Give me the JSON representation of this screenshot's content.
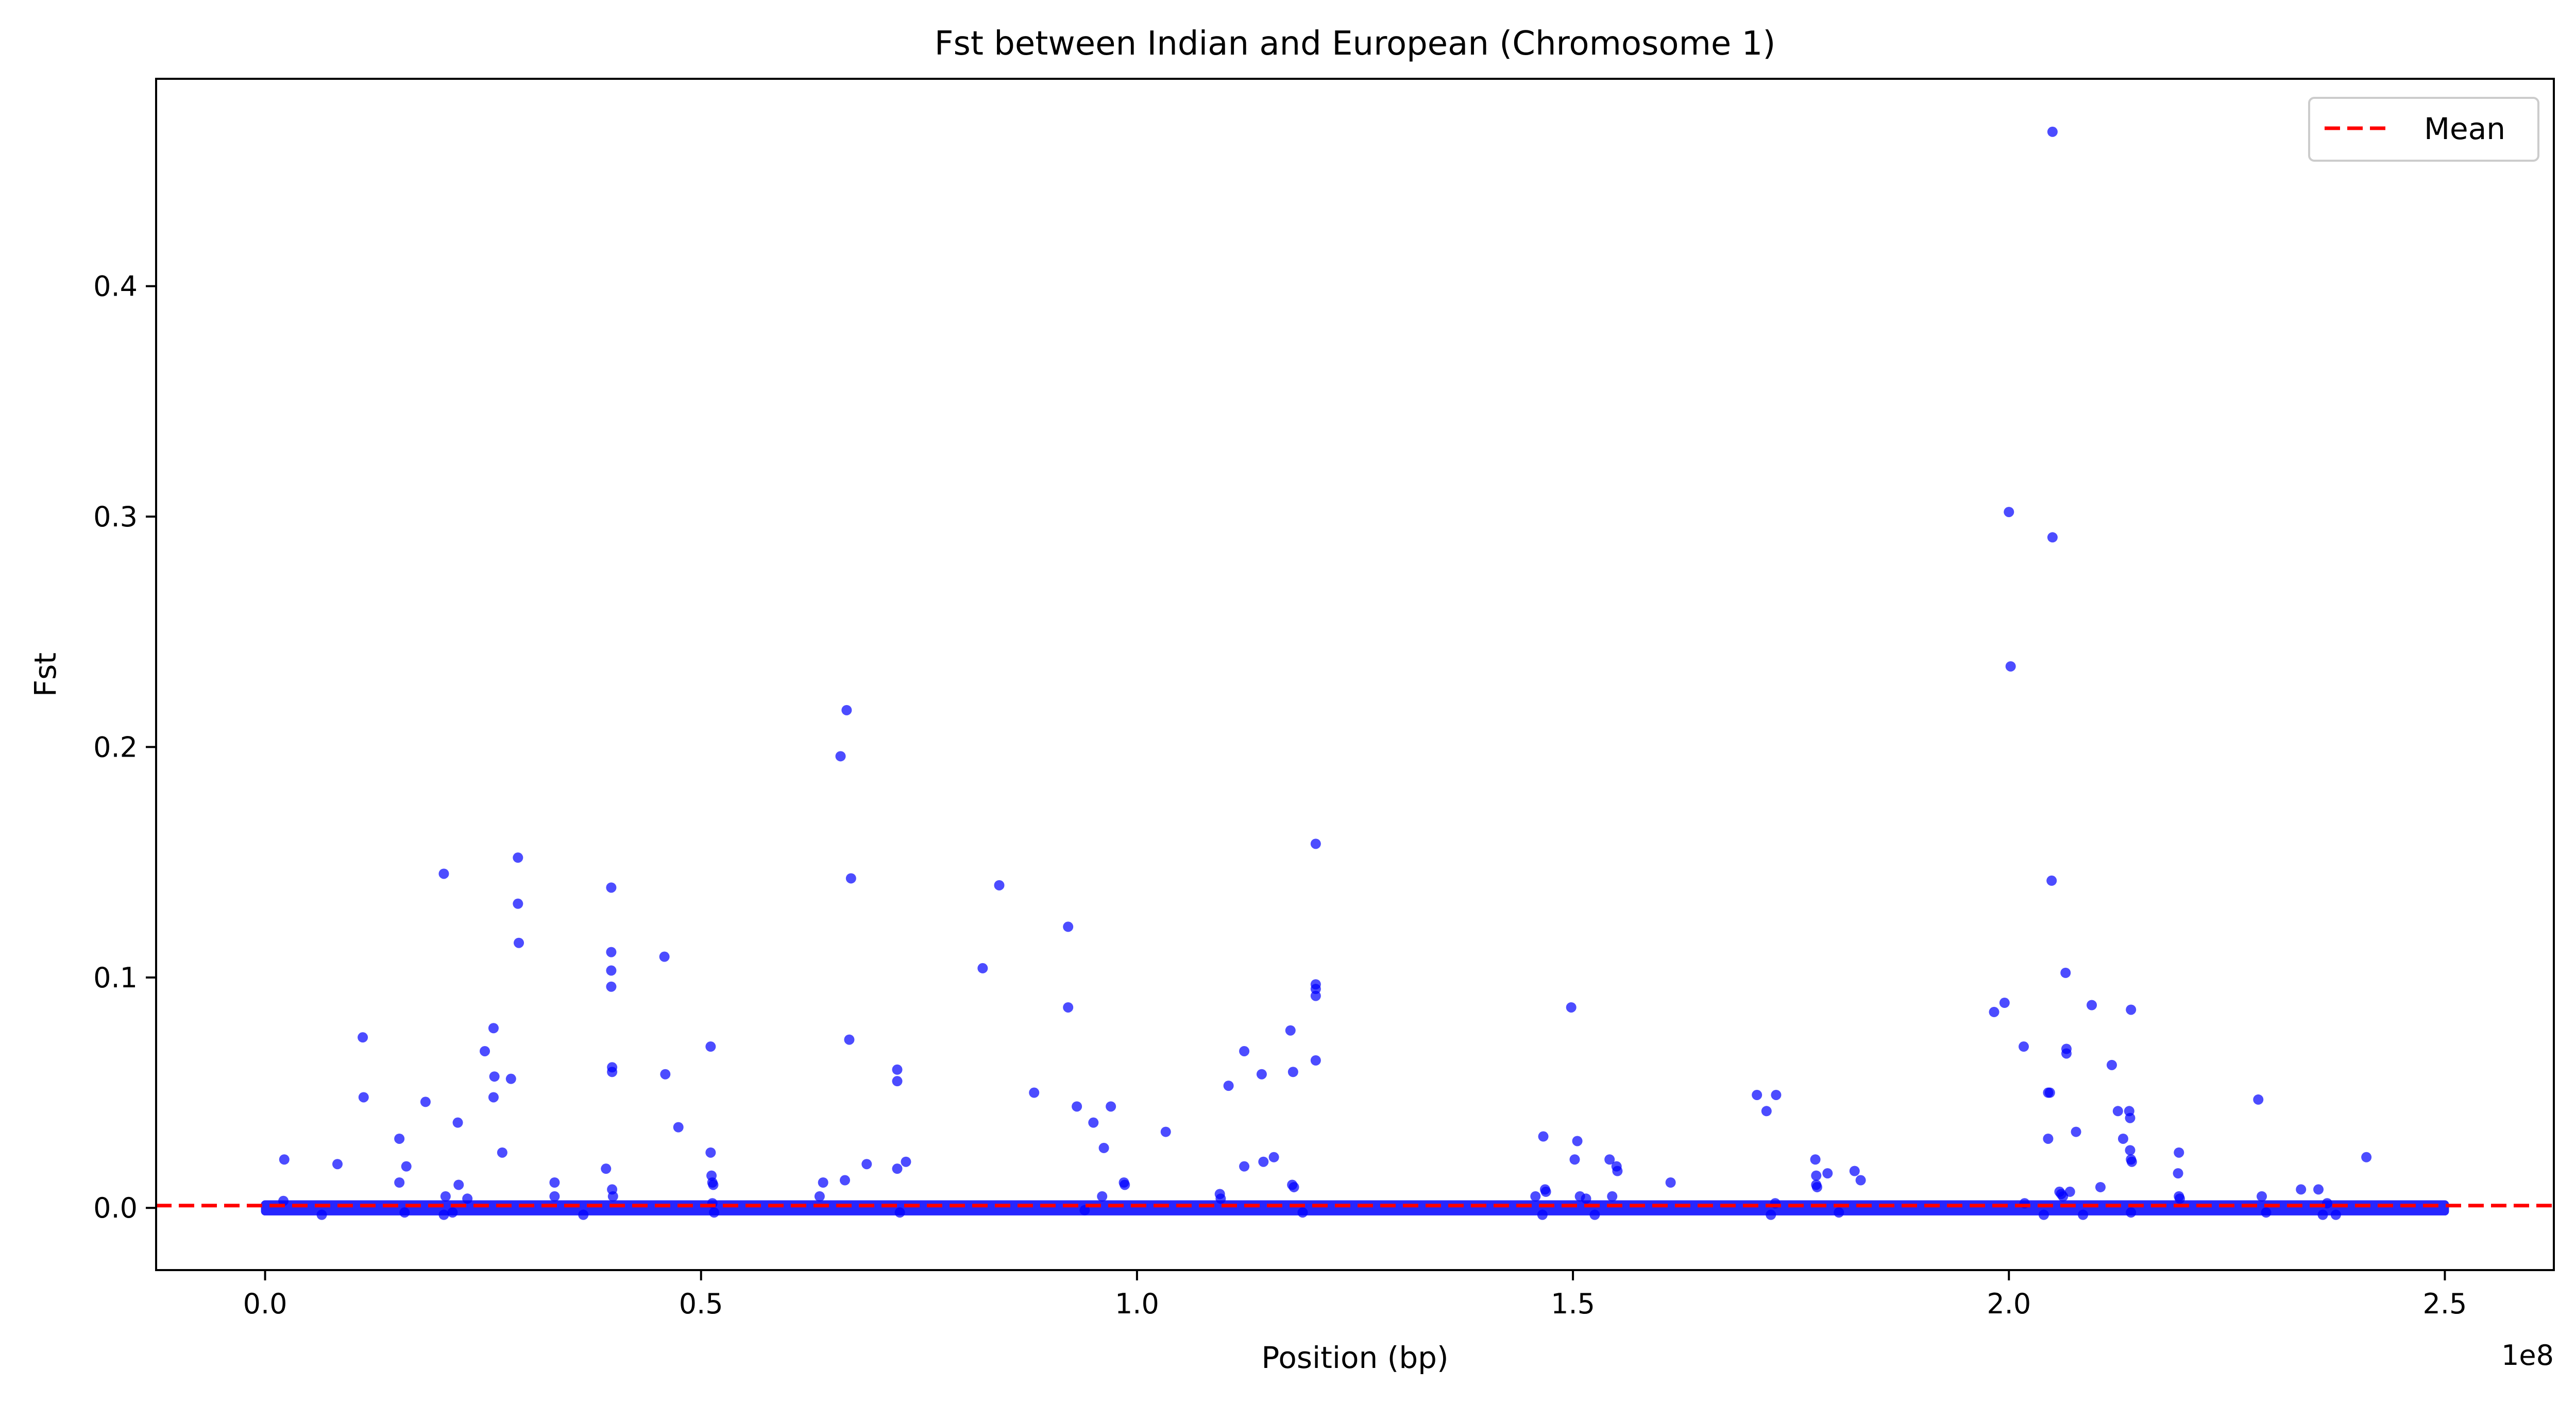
{
  "chart_data": {
    "type": "scatter",
    "title": "Fst between Indian and European (Chromosome 1)",
    "xlabel": "Position (bp)",
    "ylabel": "Fst",
    "x_offset_label": "1e8",
    "xlim": [
      -0.125,
      2.625
    ],
    "ylim": [
      -0.027,
      0.49
    ],
    "x_ticks": [
      {
        "value": 0.0,
        "label": "0.0"
      },
      {
        "value": 0.5,
        "label": "0.5"
      },
      {
        "value": 1.0,
        "label": "1.0"
      },
      {
        "value": 1.5,
        "label": "1.5"
      },
      {
        "value": 2.0,
        "label": "2.0"
      },
      {
        "value": 2.5,
        "label": "2.5"
      }
    ],
    "y_ticks": [
      {
        "value": 0.0,
        "label": "0.0"
      },
      {
        "value": 0.1,
        "label": "0.1"
      },
      {
        "value": 0.2,
        "label": "0.2"
      },
      {
        "value": 0.3,
        "label": "0.3"
      },
      {
        "value": 0.4,
        "label": "0.4"
      }
    ],
    "grid": false,
    "legend": {
      "position": "top-right",
      "entries": [
        {
          "label": "Mean",
          "style": "dashed-line",
          "color": "#ff0000"
        }
      ]
    },
    "mean_value": 0.001,
    "point_color": "#0000ff",
    "points": [
      {
        "x": 0.022,
        "y": 0.021
      },
      {
        "x": 0.021,
        "y": 0.003
      },
      {
        "x": 0.083,
        "y": 0.019
      },
      {
        "x": 0.112,
        "y": 0.074
      },
      {
        "x": 0.113,
        "y": 0.048
      },
      {
        "x": 0.154,
        "y": 0.03
      },
      {
        "x": 0.154,
        "y": 0.011
      },
      {
        "x": 0.162,
        "y": 0.018
      },
      {
        "x": 0.184,
        "y": 0.046
      },
      {
        "x": 0.205,
        "y": 0.145
      },
      {
        "x": 0.207,
        "y": 0.005
      },
      {
        "x": 0.221,
        "y": 0.037
      },
      {
        "x": 0.222,
        "y": 0.01
      },
      {
        "x": 0.232,
        "y": 0.004
      },
      {
        "x": 0.252,
        "y": 0.068
      },
      {
        "x": 0.262,
        "y": 0.078
      },
      {
        "x": 0.263,
        "y": 0.057
      },
      {
        "x": 0.262,
        "y": 0.048
      },
      {
        "x": 0.272,
        "y": 0.024
      },
      {
        "x": 0.282,
        "y": 0.056
      },
      {
        "x": 0.29,
        "y": 0.152
      },
      {
        "x": 0.29,
        "y": 0.132
      },
      {
        "x": 0.291,
        "y": 0.115
      },
      {
        "x": 0.332,
        "y": 0.011
      },
      {
        "x": 0.332,
        "y": 0.005
      },
      {
        "x": 0.391,
        "y": 0.017
      },
      {
        "x": 0.397,
        "y": 0.139
      },
      {
        "x": 0.397,
        "y": 0.111
      },
      {
        "x": 0.397,
        "y": 0.103
      },
      {
        "x": 0.397,
        "y": 0.096
      },
      {
        "x": 0.398,
        "y": 0.061
      },
      {
        "x": 0.398,
        "y": 0.059
      },
      {
        "x": 0.398,
        "y": 0.008
      },
      {
        "x": 0.399,
        "y": 0.005
      },
      {
        "x": 0.458,
        "y": 0.109
      },
      {
        "x": 0.459,
        "y": 0.058
      },
      {
        "x": 0.474,
        "y": 0.035
      },
      {
        "x": 0.511,
        "y": 0.07
      },
      {
        "x": 0.511,
        "y": 0.024
      },
      {
        "x": 0.512,
        "y": 0.014
      },
      {
        "x": 0.513,
        "y": 0.011
      },
      {
        "x": 0.514,
        "y": 0.01
      },
      {
        "x": 0.513,
        "y": 0.002
      },
      {
        "x": 0.636,
        "y": 0.005
      },
      {
        "x": 0.64,
        "y": 0.011
      },
      {
        "x": 0.66,
        "y": 0.196
      },
      {
        "x": 0.667,
        "y": 0.216
      },
      {
        "x": 0.665,
        "y": 0.012
      },
      {
        "x": 0.672,
        "y": 0.143
      },
      {
        "x": 0.67,
        "y": 0.073
      },
      {
        "x": 0.69,
        "y": 0.019
      },
      {
        "x": 0.725,
        "y": 0.06
      },
      {
        "x": 0.725,
        "y": 0.055
      },
      {
        "x": 0.725,
        "y": 0.017
      },
      {
        "x": 0.735,
        "y": 0.02
      },
      {
        "x": 0.823,
        "y": 0.104
      },
      {
        "x": 0.842,
        "y": 0.14
      },
      {
        "x": 0.882,
        "y": 0.05
      },
      {
        "x": 0.921,
        "y": 0.122
      },
      {
        "x": 0.921,
        "y": 0.087
      },
      {
        "x": 0.931,
        "y": 0.044
      },
      {
        "x": 0.95,
        "y": 0.037
      },
      {
        "x": 0.962,
        "y": 0.026
      },
      {
        "x": 0.97,
        "y": 0.044
      },
      {
        "x": 0.96,
        "y": 0.005
      },
      {
        "x": 0.985,
        "y": 0.011
      },
      {
        "x": 0.986,
        "y": 0.01
      },
      {
        "x": 1.033,
        "y": 0.033
      },
      {
        "x": 1.095,
        "y": 0.006
      },
      {
        "x": 1.096,
        "y": 0.004
      },
      {
        "x": 1.105,
        "y": 0.053
      },
      {
        "x": 1.123,
        "y": 0.068
      },
      {
        "x": 1.123,
        "y": 0.018
      },
      {
        "x": 1.143,
        "y": 0.058
      },
      {
        "x": 1.145,
        "y": 0.02
      },
      {
        "x": 1.157,
        "y": 0.022
      },
      {
        "x": 1.176,
        "y": 0.077
      },
      {
        "x": 1.179,
        "y": 0.059
      },
      {
        "x": 1.178,
        "y": 0.01
      },
      {
        "x": 1.18,
        "y": 0.009
      },
      {
        "x": 1.205,
        "y": 0.158
      },
      {
        "x": 1.205,
        "y": 0.097
      },
      {
        "x": 1.205,
        "y": 0.095
      },
      {
        "x": 1.205,
        "y": 0.092
      },
      {
        "x": 1.205,
        "y": 0.064
      },
      {
        "x": 1.457,
        "y": 0.005
      },
      {
        "x": 1.466,
        "y": 0.031
      },
      {
        "x": 1.468,
        "y": 0.008
      },
      {
        "x": 1.469,
        "y": 0.007
      },
      {
        "x": 1.498,
        "y": 0.087
      },
      {
        "x": 1.505,
        "y": 0.029
      },
      {
        "x": 1.502,
        "y": 0.021
      },
      {
        "x": 1.508,
        "y": 0.005
      },
      {
        "x": 1.515,
        "y": 0.004
      },
      {
        "x": 1.542,
        "y": 0.021
      },
      {
        "x": 1.55,
        "y": 0.018
      },
      {
        "x": 1.551,
        "y": 0.016
      },
      {
        "x": 1.545,
        "y": 0.005
      },
      {
        "x": 1.612,
        "y": 0.011
      },
      {
        "x": 1.711,
        "y": 0.049
      },
      {
        "x": 1.722,
        "y": 0.042
      },
      {
        "x": 1.733,
        "y": 0.049
      },
      {
        "x": 1.732,
        "y": 0.002
      },
      {
        "x": 1.778,
        "y": 0.021
      },
      {
        "x": 1.779,
        "y": 0.014
      },
      {
        "x": 1.779,
        "y": 0.01
      },
      {
        "x": 1.78,
        "y": 0.009
      },
      {
        "x": 1.792,
        "y": 0.015
      },
      {
        "x": 1.823,
        "y": 0.016
      },
      {
        "x": 1.83,
        "y": 0.012
      },
      {
        "x": 1.983,
        "y": 0.085
      },
      {
        "x": 1.995,
        "y": 0.089
      },
      {
        "x": 2.0,
        "y": 0.302
      },
      {
        "x": 2.002,
        "y": 0.235
      },
      {
        "x": 2.017,
        "y": 0.07
      },
      {
        "x": 2.018,
        "y": 0.002
      },
      {
        "x": 2.045,
        "y": 0.05
      },
      {
        "x": 2.047,
        "y": 0.05
      },
      {
        "x": 2.045,
        "y": 0.03
      },
      {
        "x": 2.05,
        "y": 0.467
      },
      {
        "x": 2.05,
        "y": 0.291
      },
      {
        "x": 2.049,
        "y": 0.142
      },
      {
        "x": 2.058,
        "y": 0.007
      },
      {
        "x": 2.06,
        "y": 0.006
      },
      {
        "x": 2.062,
        "y": 0.005
      },
      {
        "x": 2.065,
        "y": 0.102
      },
      {
        "x": 2.066,
        "y": 0.069
      },
      {
        "x": 2.066,
        "y": 0.067
      },
      {
        "x": 2.07,
        "y": 0.007
      },
      {
        "x": 2.077,
        "y": 0.033
      },
      {
        "x": 2.095,
        "y": 0.088
      },
      {
        "x": 2.105,
        "y": 0.009
      },
      {
        "x": 2.118,
        "y": 0.062
      },
      {
        "x": 2.125,
        "y": 0.042
      },
      {
        "x": 2.131,
        "y": 0.03
      },
      {
        "x": 2.14,
        "y": 0.086
      },
      {
        "x": 2.138,
        "y": 0.042
      },
      {
        "x": 2.139,
        "y": 0.039
      },
      {
        "x": 2.139,
        "y": 0.025
      },
      {
        "x": 2.14,
        "y": 0.021
      },
      {
        "x": 2.141,
        "y": 0.02
      },
      {
        "x": 2.195,
        "y": 0.024
      },
      {
        "x": 2.194,
        "y": 0.015
      },
      {
        "x": 2.195,
        "y": 0.005
      },
      {
        "x": 2.196,
        "y": 0.004
      },
      {
        "x": 2.286,
        "y": 0.047
      },
      {
        "x": 2.29,
        "y": 0.005
      },
      {
        "x": 2.335,
        "y": 0.008
      },
      {
        "x": 2.355,
        "y": 0.008
      },
      {
        "x": 2.365,
        "y": 0.002
      },
      {
        "x": 2.41,
        "y": 0.022
      },
      {
        "x": 0.065,
        "y": -0.003
      },
      {
        "x": 0.16,
        "y": -0.002
      },
      {
        "x": 0.205,
        "y": -0.003
      },
      {
        "x": 0.215,
        "y": -0.002
      },
      {
        "x": 0.365,
        "y": -0.003
      },
      {
        "x": 0.515,
        "y": -0.002
      },
      {
        "x": 0.728,
        "y": -0.002
      },
      {
        "x": 0.94,
        "y": -0.001
      },
      {
        "x": 1.19,
        "y": -0.002
      },
      {
        "x": 1.465,
        "y": -0.003
      },
      {
        "x": 1.525,
        "y": -0.003
      },
      {
        "x": 1.727,
        "y": -0.003
      },
      {
        "x": 1.805,
        "y": -0.002
      },
      {
        "x": 2.04,
        "y": -0.003
      },
      {
        "x": 2.085,
        "y": -0.003
      },
      {
        "x": 2.14,
        "y": -0.002
      },
      {
        "x": 2.295,
        "y": -0.002
      },
      {
        "x": 2.36,
        "y": -0.003
      },
      {
        "x": 2.375,
        "y": -0.003
      }
    ],
    "baseline_band": {
      "x_start": 0.0,
      "x_end": 2.5,
      "y_min": -0.0015,
      "y_max": 0.0015
    }
  }
}
